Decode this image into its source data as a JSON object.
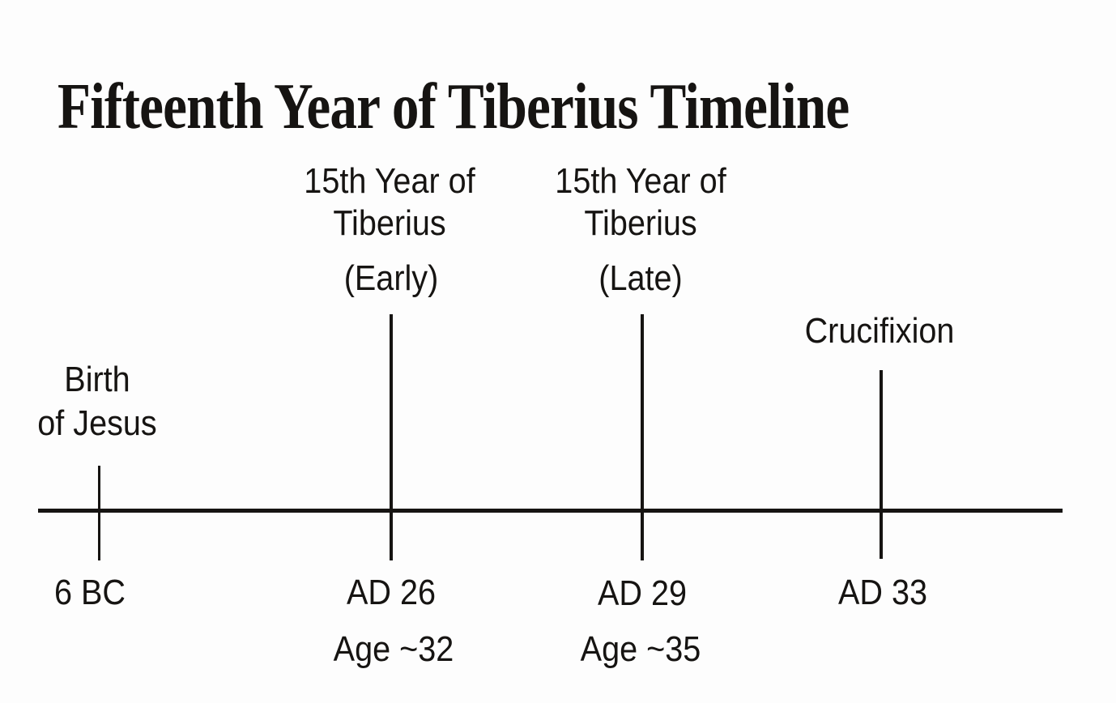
{
  "title": "Fifteenth Year of Tiberius Timeline",
  "colors": {
    "ink": "#161412",
    "background": "#fdfdfd"
  },
  "timeline": {
    "description": "Horizontal timeline with four dated events",
    "events": [
      {
        "name": "Birth\nof Jesus",
        "year": "6 BC"
      },
      {
        "name": "15th Year of\nTiberius",
        "qualifier": "(Early)",
        "year": "AD 26",
        "age": "Age ~32"
      },
      {
        "name": "15th Year of\nTiberius",
        "qualifier": "(Late)",
        "year": "AD 29",
        "age": "Age ~35"
      },
      {
        "name": "Crucifixion",
        "year": "AD 33"
      }
    ]
  }
}
